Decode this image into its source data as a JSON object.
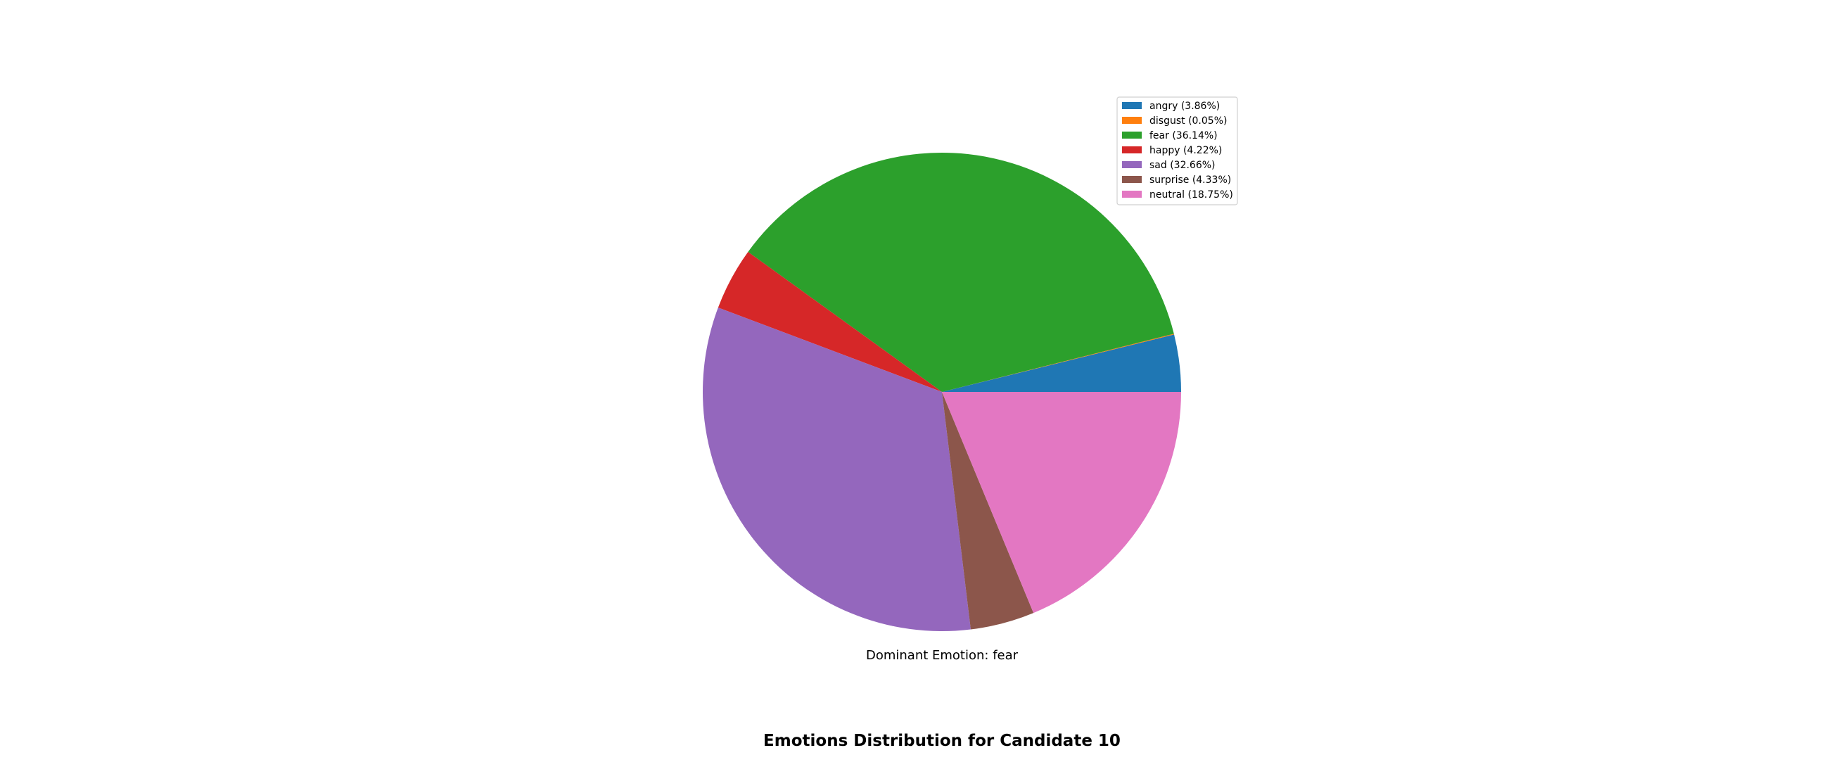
{
  "chart_data": {
    "type": "pie",
    "title": "Emotions Distribution for Candidate 10",
    "caption": "Dominant Emotion: fear",
    "legend_placement": "top-right",
    "start_angle_deg": 0,
    "direction": "counterclockwise",
    "slices": [
      {
        "key": "angry",
        "label": "angry (3.86%)",
        "value": 3.86,
        "color": "#1f77b4"
      },
      {
        "key": "disgust",
        "label": "disgust (0.05%)",
        "value": 0.05,
        "color": "#ff7f0e"
      },
      {
        "key": "fear",
        "label": "fear (36.14%)",
        "value": 36.14,
        "color": "#2ca02c"
      },
      {
        "key": "happy",
        "label": "happy (4.22%)",
        "value": 4.22,
        "color": "#d62728"
      },
      {
        "key": "sad",
        "label": "sad (32.66%)",
        "value": 32.66,
        "color": "#9467bd"
      },
      {
        "key": "surprise",
        "label": "surprise (4.33%)",
        "value": 4.33,
        "color": "#8c564b"
      },
      {
        "key": "neutral",
        "label": "neutral (18.75%)",
        "value": 18.75,
        "color": "#e377c2"
      }
    ]
  }
}
